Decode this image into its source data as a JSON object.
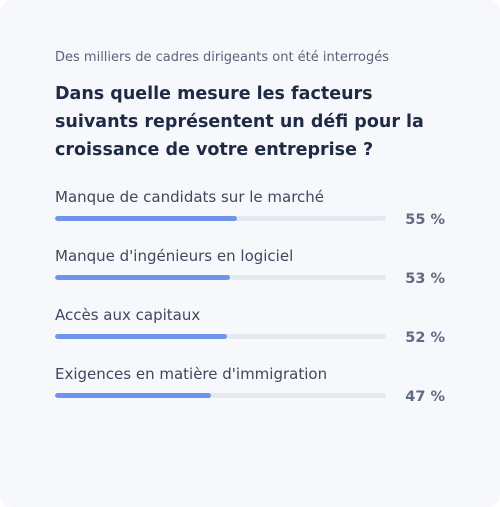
{
  "survey": {
    "subtitle": "Des milliers de cadres dirigeants ont été interrogés",
    "question": "Dans quelle mesure les facteurs suivants représentent un défi pour la croissance de votre entreprise ?",
    "bar_color": "#7093ec",
    "track_color": "#e5e9f2",
    "items": [
      {
        "label": "Manque de candidats sur le marché",
        "percent": 55,
        "percent_text": "55 %"
      },
      {
        "label": "Manque d'ingénieurs en logiciel",
        "percent": 53,
        "percent_text": "53 %"
      },
      {
        "label": "Accès aux capitaux",
        "percent": 52,
        "percent_text": "52 %"
      },
      {
        "label": "Exigences en matière d'immigration",
        "percent": 47,
        "percent_text": "47 %"
      }
    ]
  }
}
